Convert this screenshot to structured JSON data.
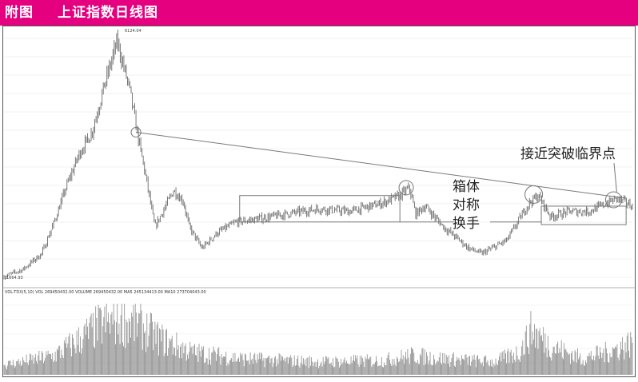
{
  "header": {
    "tag": "附图",
    "title": "上证指数日线图",
    "bg_color": "#e4007f"
  },
  "annotations": {
    "breakout": "接近突破临界点",
    "box_line1": "箱体",
    "box_line2": "对称",
    "box_line3": "换手"
  },
  "price_labels": {
    "high": "6124.04",
    "low": "1664.93"
  },
  "volume_legend": "VOL-TDX(5,10) VOL 269450432.00 VOLUME 269450432.00 MA5 245134413.00 MA10 273704043.00",
  "chart_data": {
    "type": "candlestick-with-volume",
    "title": "上证指数日线图",
    "high_point": 6124.04,
    "low_point": 1664.93,
    "price_path": [
      [
        0,
        1664
      ],
      [
        0.03,
        1800
      ],
      [
        0.06,
        2100
      ],
      [
        0.08,
        2700
      ],
      [
        0.1,
        3400
      ],
      [
        0.12,
        4000
      ],
      [
        0.14,
        4400
      ],
      [
        0.16,
        5300
      ],
      [
        0.18,
        6124
      ],
      [
        0.2,
        5200
      ],
      [
        0.215,
        4200
      ],
      [
        0.225,
        3600
      ],
      [
        0.24,
        2600
      ],
      [
        0.27,
        3300
      ],
      [
        0.285,
        3100
      ],
      [
        0.295,
        2600
      ],
      [
        0.315,
        2200
      ],
      [
        0.34,
        2500
      ],
      [
        0.37,
        2700
      ],
      [
        0.4,
        2750
      ],
      [
        0.45,
        2850
      ],
      [
        0.5,
        2950
      ],
      [
        0.55,
        2900
      ],
      [
        0.6,
        3050
      ],
      [
        0.63,
        3200
      ],
      [
        0.645,
        3350
      ],
      [
        0.655,
        2850
      ],
      [
        0.67,
        3000
      ],
      [
        0.7,
        2600
      ],
      [
        0.74,
        2200
      ],
      [
        0.76,
        2100
      ],
      [
        0.8,
        2350
      ],
      [
        0.835,
        3050
      ],
      [
        0.85,
        3200
      ],
      [
        0.87,
        2800
      ],
      [
        0.9,
        2900
      ],
      [
        0.93,
        2900
      ],
      [
        0.95,
        3000
      ],
      [
        0.975,
        3150
      ],
      [
        1.0,
        3000
      ]
    ],
    "trendline": {
      "from": [
        0.21,
        4400
      ],
      "to": [
        0.99,
        3150
      ]
    },
    "consolidation_boxes": [
      {
        "x_range": [
          0.375,
          0.63
        ],
        "y_range": [
          2700,
          3200
        ]
      },
      {
        "x_range": [
          0.855,
          0.99
        ],
        "y_range": [
          2650,
          3000
        ]
      }
    ]
  }
}
